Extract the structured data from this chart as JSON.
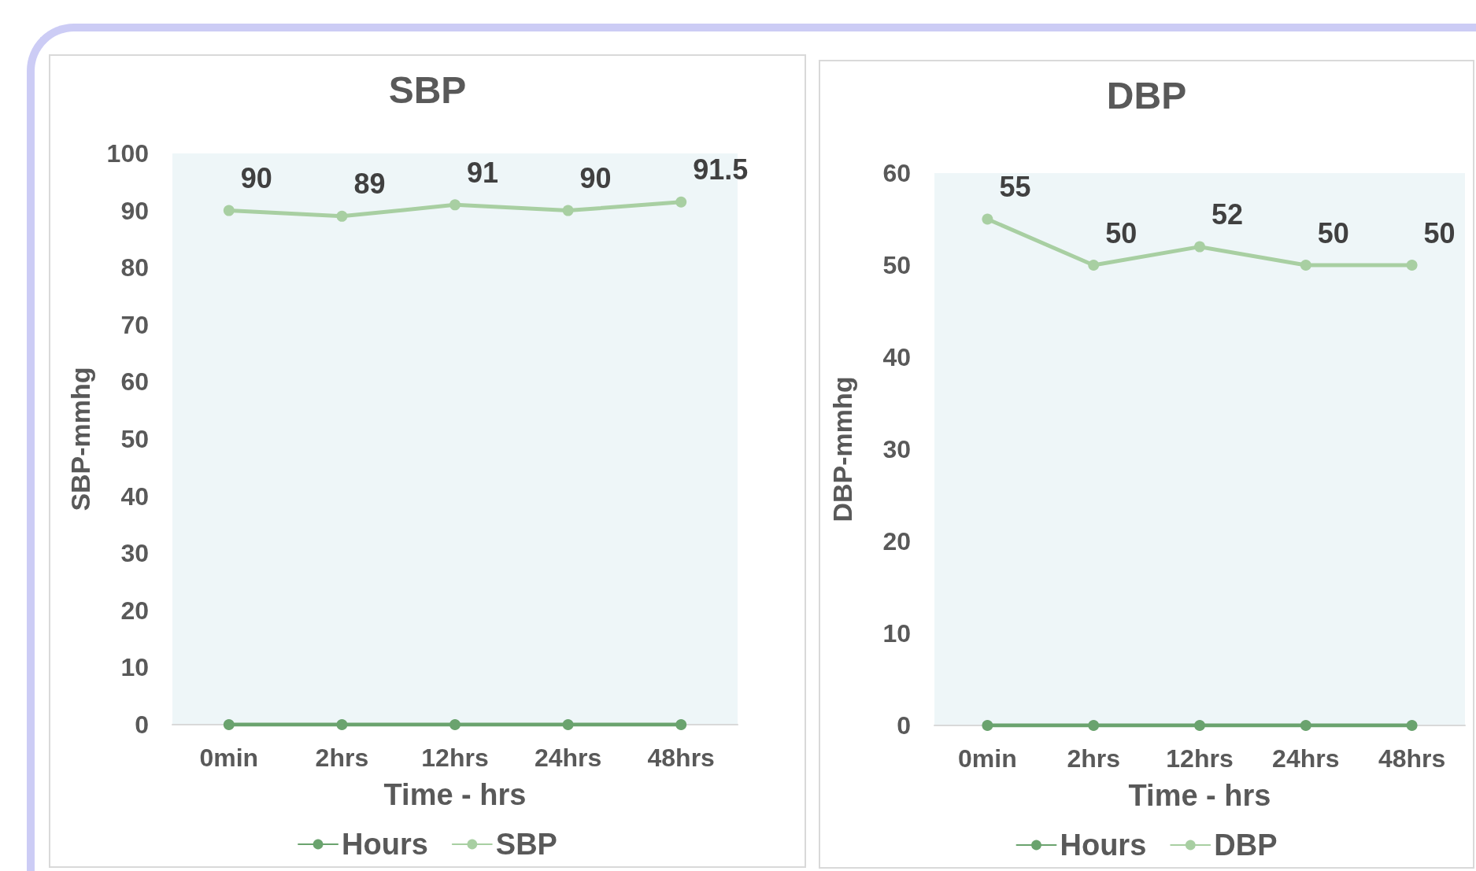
{
  "chart_data": [
    {
      "type": "line",
      "title": "SBP",
      "xlabel": "Time - hrs",
      "ylabel": "SBP-mmhg",
      "categories": [
        "0min",
        "2hrs",
        "12hrs",
        "24hrs",
        "48hrs"
      ],
      "series": [
        {
          "name": "Hours",
          "color": "#6aa36e",
          "values": [
            0,
            0,
            0,
            0,
            0
          ]
        },
        {
          "name": "SBP",
          "color": "#a8cfa2",
          "values": [
            90,
            89,
            91,
            90,
            91.5
          ],
          "value_labels": [
            "90",
            "89",
            "91",
            "90",
            "91.5"
          ]
        }
      ],
      "ylim": [
        0,
        100
      ],
      "yticks": [
        0,
        10,
        20,
        30,
        40,
        50,
        60,
        70,
        80,
        90,
        100
      ],
      "grid": false,
      "legend": "bottom",
      "marker": "circle"
    },
    {
      "type": "line",
      "title": "DBP",
      "xlabel": "Time - hrs",
      "ylabel": "DBP-mmhg",
      "categories": [
        "0min",
        "2hrs",
        "12hrs",
        "24hrs",
        "48hrs"
      ],
      "series": [
        {
          "name": "Hours",
          "color": "#6aa36e",
          "values": [
            0,
            0,
            0,
            0,
            0
          ]
        },
        {
          "name": "DBP",
          "color": "#a8cfa2",
          "values": [
            55,
            50,
            52,
            50,
            50
          ],
          "value_labels": [
            "55",
            "50",
            "52",
            "50",
            "50"
          ]
        }
      ],
      "ylim": [
        0,
        60
      ],
      "yticks": [
        0,
        10,
        20,
        30,
        40,
        50,
        60
      ],
      "grid": false,
      "legend": "bottom",
      "marker": "circle"
    }
  ]
}
